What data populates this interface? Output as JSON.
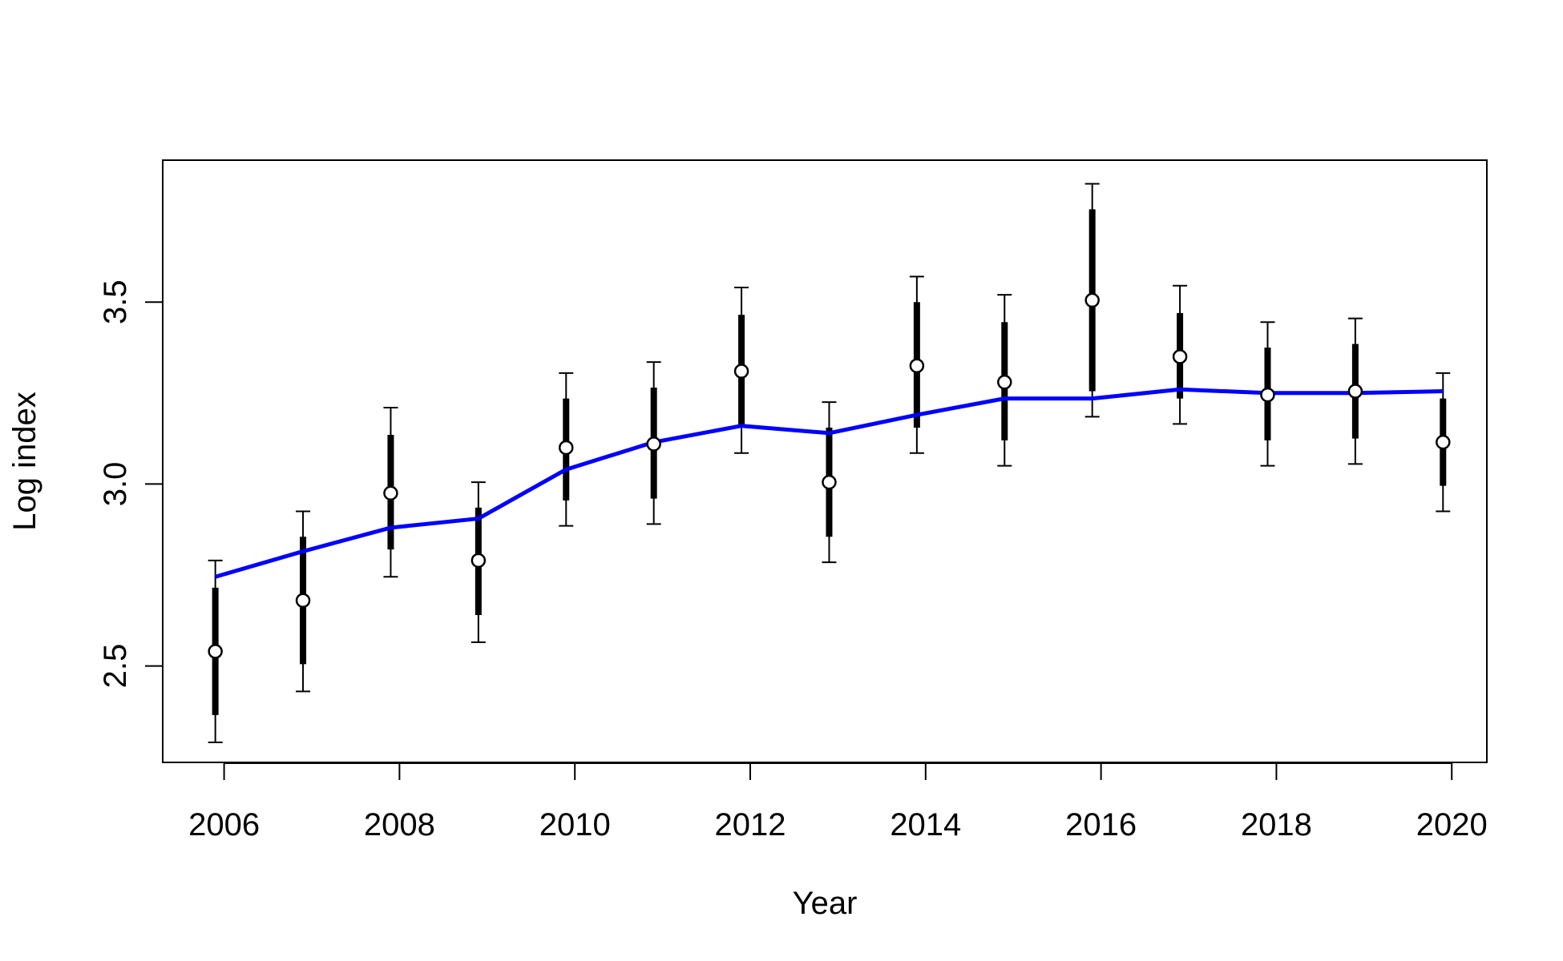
{
  "chart_data": {
    "type": "line",
    "title": "",
    "xlabel": "Year",
    "ylabel": "Log index",
    "xlim": [
      2005.3,
      2020.4
    ],
    "ylim": [
      2.235,
      3.89
    ],
    "xticks": [
      2006,
      2008,
      2010,
      2012,
      2014,
      2016,
      2018,
      2020
    ],
    "xtick_labels": [
      "2006",
      "2008",
      "2010",
      "2012",
      "2014",
      "2016",
      "2018",
      "2020"
    ],
    "yticks": [
      2.5,
      3.0,
      3.5
    ],
    "ytick_labels": [
      "2.5",
      "3.0",
      "3.5"
    ],
    "grid": false,
    "colors": {
      "fit_line": "#0000ff",
      "observations": "#000000",
      "point_fill": "#ffffff"
    },
    "observations": {
      "name": "",
      "x": [
        2005.9,
        2006.9,
        2007.9,
        2008.9,
        2009.9,
        2010.9,
        2011.9,
        2012.9,
        2013.9,
        2014.9,
        2015.9,
        2016.9,
        2017.9,
        2018.9,
        2019.9
      ],
      "y": [
        2.54,
        2.68,
        2.975,
        2.79,
        3.1,
        3.11,
        3.31,
        3.005,
        3.325,
        3.28,
        3.505,
        3.35,
        3.245,
        3.255,
        3.115
      ],
      "inner_low": [
        2.365,
        2.505,
        2.82,
        2.64,
        2.955,
        2.96,
        3.16,
        2.855,
        3.155,
        3.12,
        3.255,
        3.235,
        3.12,
        3.125,
        2.995
      ],
      "inner_high": [
        2.715,
        2.855,
        3.135,
        2.935,
        3.235,
        3.265,
        3.465,
        3.155,
        3.5,
        3.445,
        3.755,
        3.47,
        3.375,
        3.385,
        3.235
      ],
      "outer_low": [
        2.29,
        2.43,
        2.745,
        2.565,
        2.885,
        2.89,
        3.085,
        2.785,
        3.085,
        3.05,
        3.185,
        3.165,
        3.05,
        3.055,
        2.925
      ],
      "outer_high": [
        2.79,
        2.925,
        3.21,
        3.005,
        3.305,
        3.335,
        3.54,
        3.225,
        3.57,
        3.52,
        3.825,
        3.545,
        3.445,
        3.455,
        3.305
      ]
    },
    "fitted": {
      "name": "",
      "x": [
        2005.9,
        2006.9,
        2007.9,
        2008.9,
        2009.9,
        2010.9,
        2011.9,
        2012.9,
        2013.9,
        2014.9,
        2015.9,
        2016.9,
        2017.9,
        2018.9,
        2019.9
      ],
      "y": [
        2.745,
        2.815,
        2.88,
        2.905,
        3.04,
        3.115,
        3.16,
        3.14,
        3.19,
        3.235,
        3.235,
        3.26,
        3.25,
        3.25,
        3.255
      ]
    }
  }
}
